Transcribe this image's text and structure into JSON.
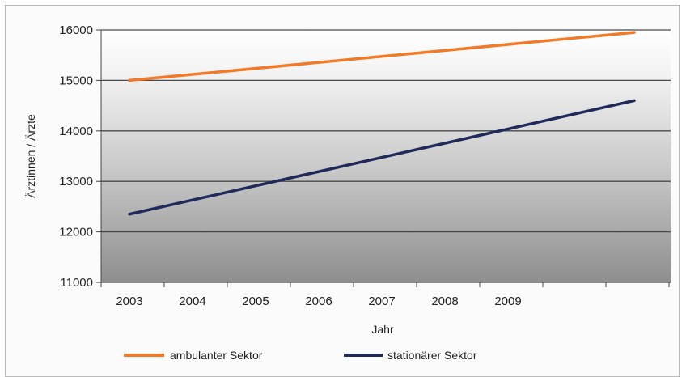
{
  "chart_data": {
    "type": "line",
    "xlabel": "Jahr",
    "ylabel": "Ärztinnen / Ärzte",
    "categories": [
      "2003",
      "2004",
      "2005",
      "2006",
      "2007",
      "2008",
      "2009"
    ],
    "ylim": [
      11000,
      16000
    ],
    "yticks": [
      11000,
      12000,
      13000,
      14000,
      15000,
      16000
    ],
    "grid": true,
    "legend_position": "bottom",
    "series": [
      {
        "name": "ambulanter Sektor",
        "color": "#f07a28",
        "x": [
          2003,
          2011
        ],
        "values": [
          15000,
          15950
        ]
      },
      {
        "name": "stationärer Sektor",
        "color": "#1f2a5a",
        "x": [
          2003,
          2011
        ],
        "values": [
          12350,
          14600
        ]
      }
    ]
  }
}
